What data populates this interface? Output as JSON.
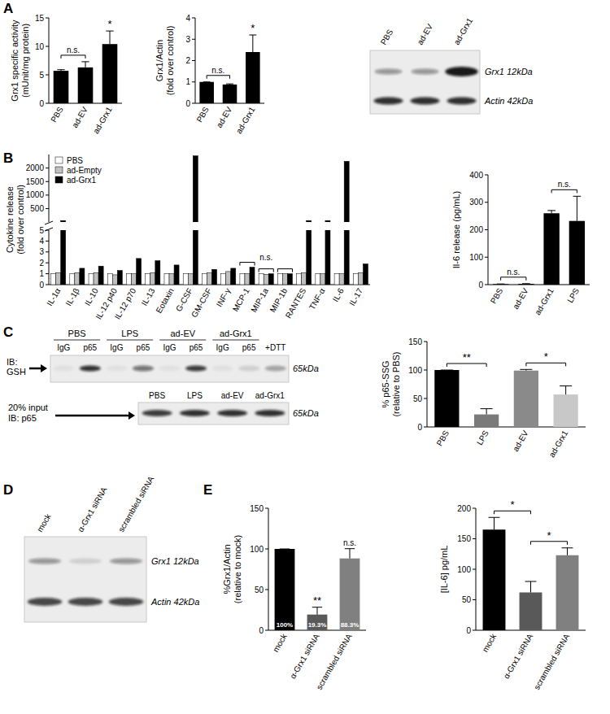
{
  "panel_labels": [
    "A",
    "B",
    "C",
    "D",
    "E"
  ],
  "chart_data": [
    {
      "type": "bar",
      "y_label": [
        "Grx1 specific activity",
        "(mUnit/mg protein)"
      ],
      "categories": [
        "PBS",
        "ad-EV",
        "ad-Grx1"
      ],
      "values": [
        5.7,
        6.3,
        10.4
      ],
      "errors": [
        0.2,
        1.0,
        2.3
      ],
      "color": "#000000",
      "ylim": [
        0,
        15
      ],
      "yticks": [
        0,
        5,
        10,
        15
      ],
      "annotations": [
        {
          "text": "n.s.",
          "between": [
            "PBS",
            "ad-EV"
          ]
        },
        {
          "text": "*",
          "over": "ad-Grx1"
        }
      ]
    },
    {
      "type": "bar",
      "y_label": [
        "Grx1/Actin",
        "(fold over control)"
      ],
      "categories": [
        "PBS",
        "ad-EV",
        "ad-Grx1"
      ],
      "values": [
        1.0,
        0.88,
        2.4
      ],
      "errors": [
        0,
        0.03,
        0.8
      ],
      "color": "#000000",
      "ylim": [
        0,
        4
      ],
      "yticks": [
        0,
        1,
        2,
        3,
        4
      ],
      "annotations": [
        {
          "text": "n.s.",
          "between": [
            "PBS",
            "ad-EV"
          ]
        },
        {
          "text": "*",
          "over": "ad-Grx1"
        }
      ]
    },
    {
      "type": "bar",
      "y_label": [
        "Cytokine release",
        "(fold over control)"
      ],
      "categories": [
        "IL-1α",
        "IL-1β",
        "IL-10",
        "IL-12 p40",
        "IL-12 p70",
        "IL-13",
        "Eotaxin",
        "G-CSF",
        "GM-CSF",
        "INF-γ",
        "MCP-1",
        "MIP-1a",
        "MIP-1b",
        "RANTES",
        "TNF-α",
        "IL-6",
        "IL-17"
      ],
      "series": [
        {
          "name": "PBS",
          "color": "#ffffff",
          "values": [
            1,
            1,
            1,
            1,
            1,
            1,
            1,
            1,
            1,
            1,
            1,
            1,
            1,
            1,
            1,
            1,
            1
          ]
        },
        {
          "name": "ad-Empty",
          "color": "#c0c0c0",
          "values": [
            1.1,
            1.1,
            1.1,
            0.9,
            1.0,
            1.1,
            1.0,
            1.0,
            1.1,
            1.2,
            1.0,
            0.95,
            1.0,
            1.1,
            1.0,
            1.0,
            1.1
          ]
        },
        {
          "name": "ad-Grx1",
          "color": "#000000",
          "values": [
            60,
            1.5,
            1.7,
            1.3,
            2.4,
            2.2,
            1.8,
            2450,
            1.4,
            1.5,
            1.6,
            1.0,
            1.0,
            60,
            60,
            2250,
            1.9
          ]
        }
      ],
      "ylim": [
        0,
        2500
      ],
      "yticks": [
        0,
        1,
        2,
        3,
        4,
        5,
        500,
        1000,
        1500,
        2000
      ],
      "legend": "upper left",
      "annotations": [
        {
          "text": "n.s.",
          "groups": [
            "MCP-1",
            "MIP-1a",
            "MIP-1b"
          ]
        }
      ]
    },
    {
      "type": "bar",
      "y_label": [
        "Il-6 release (pg/mL)"
      ],
      "categories": [
        "PBS",
        "ad-EV",
        "ad-Grx1",
        "LPS"
      ],
      "values": [
        2,
        3,
        260,
        232
      ],
      "errors": [
        0.5,
        0.5,
        10,
        90
      ],
      "color": "#000000",
      "ylim": [
        0,
        400
      ],
      "yticks": [
        0,
        100,
        200,
        300,
        400
      ],
      "annotations": [
        {
          "text": "n.s.",
          "between": [
            "PBS",
            "ad-EV"
          ]
        },
        {
          "text": "n.s.",
          "between": [
            "ad-Grx1",
            "LPS"
          ]
        }
      ]
    },
    {
      "type": "bar",
      "y_label": [
        "% p65-SSG",
        "(relative to PBS)"
      ],
      "categories": [
        "PBS",
        "LPS",
        "ad-EV",
        "ad-Grx1"
      ],
      "values": [
        100,
        22,
        99,
        57
      ],
      "errors": [
        0,
        10,
        2,
        15
      ],
      "colors": [
        "#000000",
        "#7a7a7a",
        "#8a8a8a",
        "#c8c8c8"
      ],
      "ylim": [
        0,
        150
      ],
      "yticks": [
        0,
        50,
        100,
        150
      ],
      "annotations": [
        {
          "text": "**",
          "between": [
            "PBS",
            "LPS"
          ]
        },
        {
          "text": "*",
          "between": [
            "ad-EV",
            "ad-Grx1"
          ]
        }
      ]
    },
    {
      "type": "bar",
      "y_label": [
        "%Grx1/Actin",
        "(relative to mock)"
      ],
      "categories": [
        "mock",
        "α-Grx1 siRNA",
        "scrambled siRNA"
      ],
      "values": [
        100,
        19.3,
        88.3
      ],
      "errors": [
        0,
        9,
        12
      ],
      "data_labels": true,
      "value_labels": [
        "100%",
        "19.3%",
        "88.3%"
      ],
      "colors": [
        "#000000",
        "#595959",
        "#808080"
      ],
      "ylim": [
        0,
        150
      ],
      "yticks": [
        0,
        50,
        100,
        150
      ],
      "annotations": [
        {
          "text": "**",
          "over": "α-Grx1 siRNA"
        },
        {
          "text": "n.s.",
          "over": "scrambled siRNA"
        }
      ]
    },
    {
      "type": "bar",
      "y_label": [
        "[IL-6] pg/mL"
      ],
      "categories": [
        "mock",
        "α-Grx1 siRNA",
        "scrambled siRNA"
      ],
      "values": [
        165,
        62,
        123
      ],
      "errors": [
        20,
        18,
        12
      ],
      "colors": [
        "#000000",
        "#595959",
        "#808080"
      ],
      "ylim": [
        0,
        200
      ],
      "yticks": [
        0,
        50,
        100,
        150,
        200
      ],
      "annotations": [
        {
          "text": "*",
          "between": [
            "mock",
            "α-Grx1 siRNA"
          ]
        },
        {
          "text": "*",
          "between": [
            "α-Grx1 siRNA",
            "scrambled siRNA"
          ]
        }
      ]
    }
  ],
  "blots": [
    {
      "lanes": [
        "PBS",
        "ad-EV",
        "ad-Grx1"
      ],
      "rows": [
        "Grx1 12kDa",
        "Actin 42kDa"
      ]
    },
    {
      "groups": [
        "PBS",
        "LPS",
        "ad-EV",
        "ad-Grx1"
      ],
      "lanes": [
        "IgG",
        "p65",
        "IgG",
        "p65",
        "IgG",
        "p65",
        "IgG",
        "p65",
        "+DTT"
      ],
      "probe": [
        "IB:",
        "GSH"
      ],
      "size": "65kDa",
      "input": {
        "lanes": [
          "PBS",
          "LPS",
          "ad-EV",
          "ad-Grx1"
        ],
        "probe": [
          "20% input",
          "IB: p65"
        ],
        "size": "65kDa"
      }
    },
    {
      "lanes": [
        "mock",
        "α-Grx1 siRNA",
        "scrambled siRNA"
      ],
      "rows": [
        "Grx1 12kDa",
        "Actin 42kDa"
      ]
    }
  ]
}
